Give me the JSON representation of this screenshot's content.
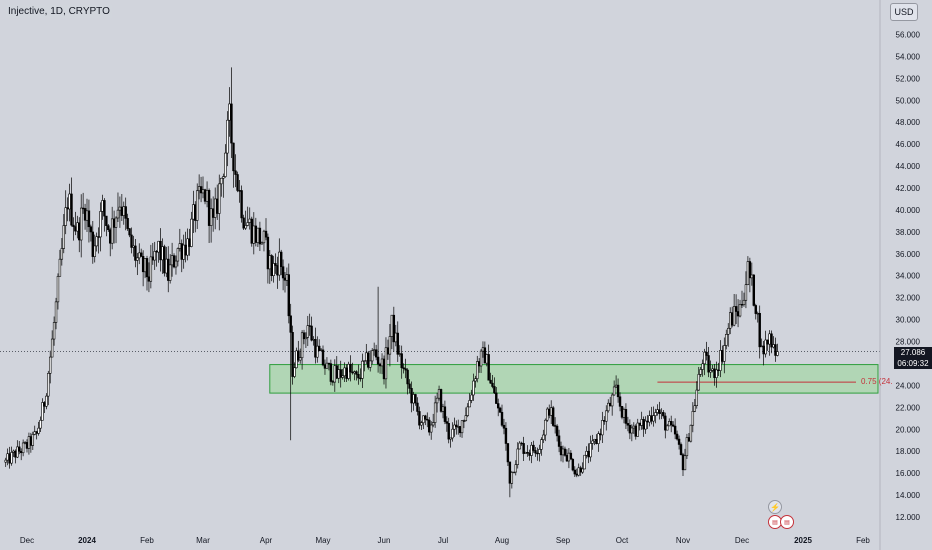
{
  "header": {
    "title": "Injective, 1D, CRYPTO",
    "currency": "USD"
  },
  "price_badge": {
    "price": "27.086",
    "countdown": "06:09:32"
  },
  "fib_label": "0.75 (24.",
  "icons": {
    "alert": "lightning-icon",
    "events": "us-flag-icon"
  },
  "colors": {
    "background": "#d1d4dc",
    "candle": "#000000",
    "zone_fill": "#a6d7a8",
    "zone_border": "#2e9e3c",
    "fib_line": "#c4323b"
  },
  "chart_data": {
    "type": "candlestick",
    "title": "Injective, 1D, CRYPTO",
    "y_ticks": [
      "12.000",
      "14.000",
      "16.000",
      "18.000",
      "20.000",
      "22.000",
      "24.000",
      "26.000",
      "28.000",
      "30.000",
      "32.000",
      "34.000",
      "36.000",
      "38.000",
      "40.000",
      "42.000",
      "44.000",
      "46.000",
      "48.000",
      "50.000",
      "52.000",
      "54.000",
      "56.000"
    ],
    "x_ticks": [
      "Dec",
      "2024",
      "Feb",
      "Mar",
      "Apr",
      "May",
      "Jun",
      "Jul",
      "Aug",
      "Sep",
      "Oct",
      "Nov",
      "Dec",
      "2025",
      "Feb"
    ],
    "ylim": [
      11,
      57.5
    ],
    "current_price": 27.086,
    "support_zone": [
      23.3,
      25.9
    ],
    "fib_level": {
      "ratio": 0.75,
      "price": 24.3
    },
    "price_path": [
      [
        "2023-11-20",
        17.0
      ],
      [
        "2023-11-25",
        17.8
      ],
      [
        "2023-12-01",
        18.5
      ],
      [
        "2023-12-06",
        19.5
      ],
      [
        "2023-12-10",
        22.5
      ],
      [
        "2023-12-14",
        28.0
      ],
      [
        "2023-12-18",
        34.5
      ],
      [
        "2023-12-22",
        41.0
      ],
      [
        "2023-12-27",
        38.0
      ],
      [
        "2023-12-31",
        40.5
      ],
      [
        "2024-01-04",
        36.5
      ],
      [
        "2024-01-09",
        40.0
      ],
      [
        "2024-01-13",
        38.0
      ],
      [
        "2024-01-18",
        41.0
      ],
      [
        "2024-01-23",
        37.0
      ],
      [
        "2024-01-28",
        35.0
      ],
      [
        "2024-02-02",
        34.0
      ],
      [
        "2024-02-07",
        36.5
      ],
      [
        "2024-02-12",
        34.0
      ],
      [
        "2024-02-17",
        36.5
      ],
      [
        "2024-02-22",
        37.0
      ],
      [
        "2024-02-27",
        40.5
      ],
      [
        "2024-03-02",
        41.5
      ],
      [
        "2024-03-06",
        38.5
      ],
      [
        "2024-03-10",
        43.0
      ],
      [
        "2024-03-14",
        48.0
      ],
      [
        "2024-03-17",
        43.5
      ],
      [
        "2024-03-21",
        39.5
      ],
      [
        "2024-03-26",
        38.0
      ],
      [
        "2024-03-31",
        37.0
      ],
      [
        "2024-04-04",
        34.5
      ],
      [
        "2024-04-08",
        35.5
      ],
      [
        "2024-04-12",
        33.0
      ],
      [
        "2024-04-15",
        25.5
      ],
      [
        "2024-04-19",
        27.5
      ],
      [
        "2024-04-23",
        29.5
      ],
      [
        "2024-04-28",
        27.0
      ],
      [
        "2024-05-03",
        25.5
      ],
      [
        "2024-05-08",
        24.8
      ],
      [
        "2024-05-13",
        25.5
      ],
      [
        "2024-05-18",
        24.5
      ],
      [
        "2024-05-22",
        25.8
      ],
      [
        "2024-05-27",
        27.0
      ],
      [
        "2024-06-01",
        25.5
      ],
      [
        "2024-06-05",
        29.5
      ],
      [
        "2024-06-09",
        26.5
      ],
      [
        "2024-06-14",
        23.5
      ],
      [
        "2024-06-19",
        21.0
      ],
      [
        "2024-06-24",
        20.0
      ],
      [
        "2024-06-29",
        23.0
      ],
      [
        "2024-07-04",
        19.5
      ],
      [
        "2024-07-09",
        20.0
      ],
      [
        "2024-07-14",
        22.0
      ],
      [
        "2024-07-19",
        26.0
      ],
      [
        "2024-07-23",
        26.8
      ],
      [
        "2024-07-28",
        23.0
      ],
      [
        "2024-08-02",
        20.0
      ],
      [
        "2024-08-05",
        15.5
      ],
      [
        "2024-08-10",
        18.5
      ],
      [
        "2024-08-15",
        18.0
      ],
      [
        "2024-08-20",
        18.5
      ],
      [
        "2024-08-25",
        22.0
      ],
      [
        "2024-08-30",
        18.5
      ],
      [
        "2024-09-04",
        17.5
      ],
      [
        "2024-09-08",
        16.0
      ],
      [
        "2024-09-13",
        17.5
      ],
      [
        "2024-09-18",
        19.0
      ],
      [
        "2024-09-23",
        21.5
      ],
      [
        "2024-09-28",
        23.5
      ],
      [
        "2024-10-03",
        20.5
      ],
      [
        "2024-10-08",
        20.0
      ],
      [
        "2024-10-13",
        20.5
      ],
      [
        "2024-10-18",
        22.0
      ],
      [
        "2024-10-23",
        20.5
      ],
      [
        "2024-10-28",
        19.5
      ],
      [
        "2024-11-01",
        16.8
      ],
      [
        "2024-11-06",
        21.5
      ],
      [
        "2024-11-11",
        26.5
      ],
      [
        "2024-11-16",
        25.0
      ],
      [
        "2024-11-21",
        27.0
      ],
      [
        "2024-11-25",
        30.0
      ],
      [
        "2024-11-30",
        31.0
      ],
      [
        "2024-12-04",
        34.5
      ],
      [
        "2024-12-08",
        31.5
      ],
      [
        "2024-12-11",
        27.0
      ],
      [
        "2024-12-15",
        28.5
      ],
      [
        "2024-12-19",
        27.086
      ]
    ],
    "wicks": [
      [
        "2024-03-15",
        53.0
      ],
      [
        "2024-04-14",
        19.0
      ],
      [
        "2024-05-29",
        33.0
      ],
      [
        "2024-08-05",
        13.8
      ],
      [
        "2024-12-06",
        35.2
      ]
    ]
  }
}
